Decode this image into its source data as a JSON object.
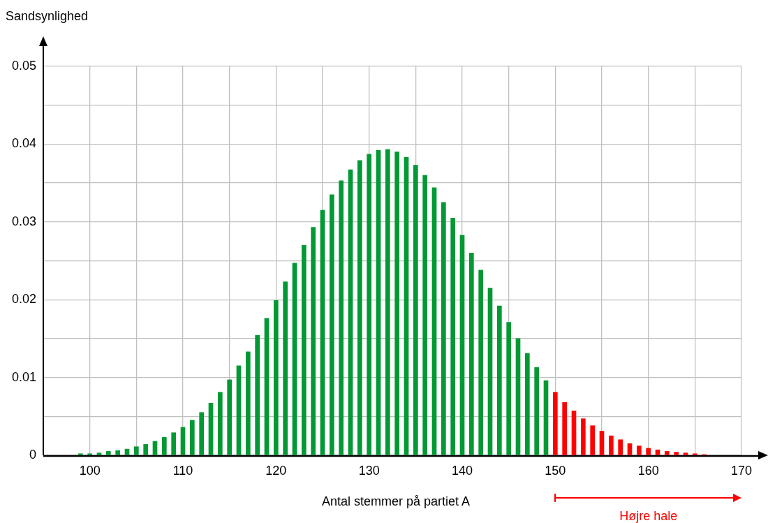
{
  "chart_data": {
    "type": "bar",
    "xlabel": "Antal stemmer på partiet A",
    "ylabel": "Sandsynlighed",
    "series": [
      {
        "color": "#009933",
        "x": [
          99,
          100,
          101,
          102,
          103,
          104,
          105,
          106,
          107,
          108,
          109,
          110,
          111,
          112,
          113,
          114,
          115,
          116,
          117,
          118,
          119,
          120,
          121,
          122,
          123,
          124,
          125,
          126,
          127,
          128,
          129,
          130,
          131,
          132,
          133,
          134,
          135,
          136,
          137,
          138,
          139,
          140,
          141,
          142,
          143,
          144,
          145,
          146,
          147,
          148,
          149
        ],
        "values": [
          0.0002,
          0.0002,
          0.0003,
          0.0005,
          0.0006,
          0.0008,
          0.0011,
          0.0014,
          0.0018,
          0.0023,
          0.0029,
          0.0036,
          0.0045,
          0.0055,
          0.0067,
          0.0081,
          0.0097,
          0.0115,
          0.0133,
          0.0154,
          0.0176,
          0.0199,
          0.0223,
          0.0247,
          0.027,
          0.0293,
          0.0315,
          0.0335,
          0.0353,
          0.0367,
          0.0379,
          0.0387,
          0.0392,
          0.0393,
          0.039,
          0.0383,
          0.0373,
          0.036,
          0.0344,
          0.0325,
          0.0305,
          0.0283,
          0.026,
          0.0238,
          0.0215,
          0.0192,
          0.0171,
          0.015,
          0.0131,
          0.0113,
          0.0096
        ]
      },
      {
        "color": "#ff0000",
        "x": [
          150,
          151,
          152,
          153,
          154,
          155,
          156,
          157,
          158,
          159,
          160,
          161,
          162,
          163,
          164,
          165,
          166
        ],
        "values": [
          0.0081,
          0.0068,
          0.0057,
          0.0047,
          0.0038,
          0.0031,
          0.0025,
          0.002,
          0.0015,
          0.0012,
          0.0009,
          0.0007,
          0.0005,
          0.0004,
          0.0003,
          0.0002,
          0.0001
        ]
      }
    ],
    "xlim": [
      95,
      170
    ],
    "xticks": [
      {
        "value": 95,
        "label": null
      },
      100,
      {
        "value": 105,
        "label": null
      },
      110,
      {
        "value": 115,
        "label": null
      },
      120,
      {
        "value": 125,
        "label": null
      },
      130,
      {
        "value": 135,
        "label": null
      },
      140,
      {
        "value": 145,
        "label": null
      },
      150,
      {
        "value": 155,
        "label": null
      },
      160,
      {
        "value": 165,
        "label": null
      },
      170
    ],
    "ylim": [
      0,
      0.05
    ],
    "yticks": [
      0,
      {
        "value": 0.005,
        "label": null
      },
      0.01,
      {
        "value": 0.015,
        "label": null
      },
      0.02,
      {
        "value": 0.025,
        "label": null
      },
      0.03,
      {
        "value": 0.035,
        "label": null
      },
      0.04,
      {
        "value": 0.045,
        "label": null
      },
      0.05
    ],
    "grid": true,
    "legend": false,
    "annotations": [
      "Højre hale"
    ]
  }
}
